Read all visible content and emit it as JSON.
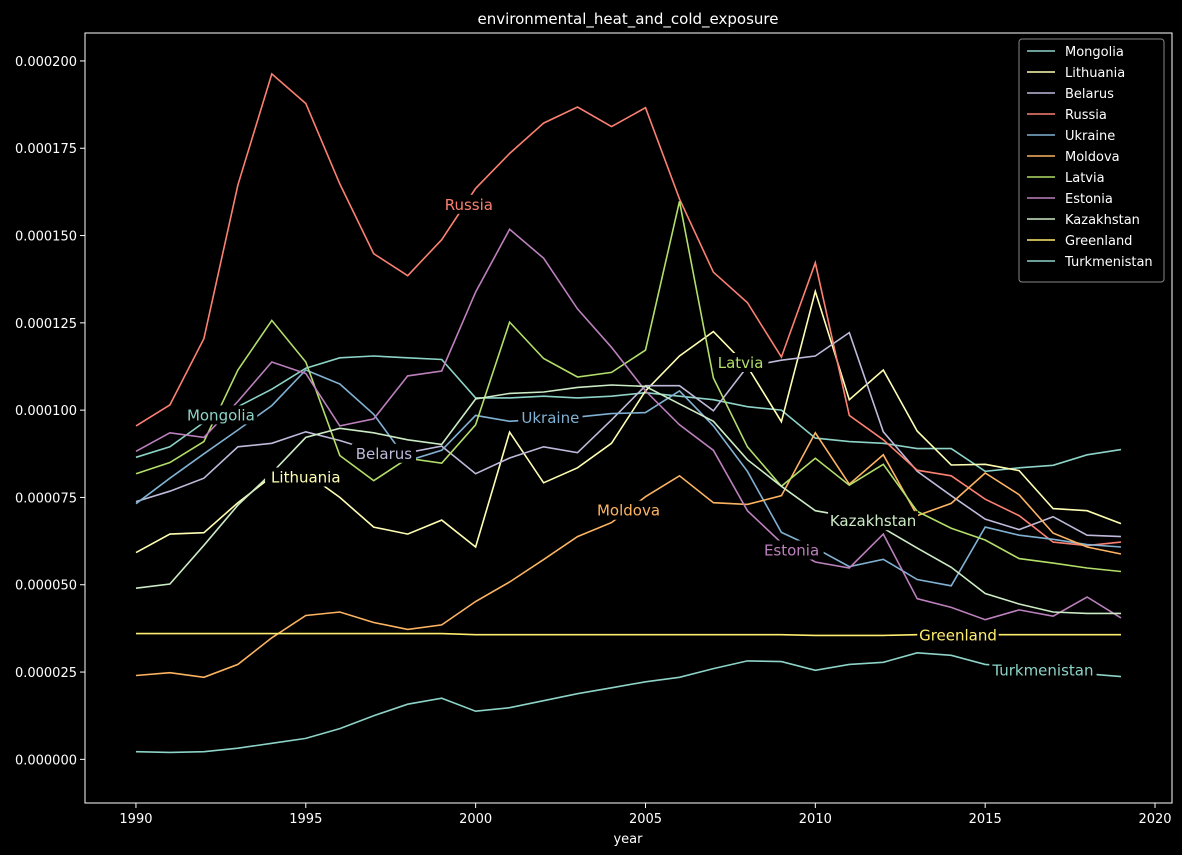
{
  "chart_data": {
    "type": "line",
    "title": "environmental_heat_and_cold_exposure",
    "xlabel": "year",
    "ylabel": "",
    "xlim": [
      1988.5,
      2020.5
    ],
    "ylim": [
      -1.25e-05,
      0.000208
    ],
    "x_ticks": [
      1990,
      1995,
      2000,
      2005,
      2010,
      2015,
      2020
    ],
    "x_tick_labels": [
      "1990",
      "1995",
      "2000",
      "2005",
      "2010",
      "2015",
      "2020"
    ],
    "y_ticks": [
      0,
      2.5e-05,
      5e-05,
      7.5e-05,
      0.0001,
      0.000125,
      0.00015,
      0.000175,
      0.0002
    ],
    "y_tick_labels": [
      "0.000000",
      "0.000025",
      "0.000050",
      "0.000075",
      "0.000100",
      "0.000125",
      "0.000150",
      "0.000175",
      "0.000200"
    ],
    "grid": false,
    "legend_position": "top-right",
    "x": [
      1990,
      1991,
      1992,
      1993,
      1994,
      1995,
      1996,
      1997,
      1998,
      1999,
      2000,
      2001,
      2002,
      2003,
      2004,
      2005,
      2006,
      2007,
      2008,
      2009,
      2010,
      2011,
      2012,
      2013,
      2014,
      2015,
      2016,
      2017,
      2018,
      2019
    ],
    "series": [
      {
        "name": "Mongolia",
        "color": "#8dd3c7",
        "label_x": 1992.5,
        "label_y": 9.85e-05,
        "values": [
          8.65e-05,
          8.95e-05,
          9.65e-05,
          0.000101,
          0.000106,
          0.000112,
          0.000115,
          0.0001155,
          0.000115,
          0.0001145,
          0.0001035,
          0.0001035,
          0.000104,
          0.0001035,
          0.000104,
          0.000105,
          0.000104,
          0.000103,
          0.000101,
          0.0001,
          9.2e-05,
          9.1e-05,
          9.05e-05,
          8.9e-05,
          8.9e-05,
          8.25e-05,
          8.35e-05,
          8.42e-05,
          8.72e-05,
          8.87e-05
        ]
      },
      {
        "name": "Lithuania",
        "color": "#ffffb3",
        "label_x": 1995.0,
        "label_y": 8.07e-05,
        "values": [
          5.92e-05,
          6.45e-05,
          6.49e-05,
          7.35e-05,
          8.1e-05,
          8.2e-05,
          7.5e-05,
          6.65e-05,
          6.45e-05,
          6.85e-05,
          6.08e-05,
          9.37e-05,
          7.92e-05,
          8.35e-05,
          9.05e-05,
          0.0001055,
          0.0001155,
          0.0001225,
          0.0001125,
          9.67e-05,
          0.000134,
          0.000103,
          0.0001115,
          9.4e-05,
          8.43e-05,
          8.45e-05,
          8.27e-05,
          7.18e-05,
          7.12e-05,
          6.75e-05
        ]
      },
      {
        "name": "Belarus",
        "color": "#bebada",
        "label_x": 1997.3,
        "label_y": 8.75e-05,
        "values": [
          7.38e-05,
          7.68e-05,
          8.05e-05,
          8.95e-05,
          9.05e-05,
          9.38e-05,
          9.13e-05,
          8.83e-05,
          8.78e-05,
          8.97e-05,
          8.18e-05,
          8.63e-05,
          8.95e-05,
          8.78e-05,
          9.72e-05,
          0.000107,
          0.000107,
          9.98e-05,
          0.0001125,
          0.0001143,
          0.0001155,
          0.0001222,
          9.38e-05,
          8.25e-05,
          7.55e-05,
          6.88e-05,
          6.58e-05,
          6.95e-05,
          6.42e-05,
          6.38e-05
        ]
      },
      {
        "name": "Russia",
        "color": "#fb8072",
        "label_x": 1999.8,
        "label_y": 0.0001588,
        "values": [
          9.55e-05,
          0.0001015,
          0.0001205,
          0.0001645,
          0.0001963,
          0.0001878,
          0.0001648,
          0.0001448,
          0.0001385,
          0.0001488,
          0.0001635,
          0.0001735,
          0.0001822,
          0.0001868,
          0.0001812,
          0.0001866,
          0.0001605,
          0.0001395,
          0.0001308,
          0.0001152,
          0.0001422,
          9.85e-05,
          9.15e-05,
          8.28e-05,
          8.12e-05,
          7.45e-05,
          6.98e-05,
          6.22e-05,
          6.12e-05,
          6.22e-05
        ]
      },
      {
        "name": "Ukraine",
        "color": "#80b1d3",
        "label_x": 2002.2,
        "label_y": 9.77e-05,
        "values": [
          7.32e-05,
          8.05e-05,
          8.75e-05,
          9.43e-05,
          0.0001013,
          0.0001115,
          0.0001075,
          9.88e-05,
          8.55e-05,
          8.85e-05,
          9.85e-05,
          9.68e-05,
          9.75e-05,
          9.8e-05,
          9.9e-05,
          9.93e-05,
          0.0001055,
          9.55e-05,
          8.25e-05,
          6.5e-05,
          6.05e-05,
          5.52e-05,
          5.73e-05,
          5.15e-05,
          4.97e-05,
          6.65e-05,
          6.42e-05,
          6.3e-05,
          6.15e-05,
          6.08e-05
        ]
      },
      {
        "name": "Moldova",
        "color": "#fdb462",
        "label_x": 2004.5,
        "label_y": 7.12e-05,
        "values": [
          2.4e-05,
          2.48e-05,
          2.35e-05,
          2.72e-05,
          3.48e-05,
          4.12e-05,
          4.22e-05,
          3.92e-05,
          3.72e-05,
          3.85e-05,
          4.52e-05,
          5.08e-05,
          5.72e-05,
          6.38e-05,
          6.78e-05,
          7.52e-05,
          8.12e-05,
          7.35e-05,
          7.3e-05,
          7.55e-05,
          9.35e-05,
          7.88e-05,
          8.72e-05,
          6.98e-05,
          7.33e-05,
          8.2e-05,
          7.58e-05,
          6.48e-05,
          6.08e-05,
          5.88e-05
        ]
      },
      {
        "name": "Latvia",
        "color": "#b3de69",
        "label_x": 2007.8,
        "label_y": 0.0001135,
        "values": [
          8.18e-05,
          8.5e-05,
          9.1e-05,
          0.0001115,
          0.0001257,
          0.0001138,
          8.7e-05,
          7.98e-05,
          8.62e-05,
          8.48e-05,
          9.58e-05,
          0.0001252,
          0.0001148,
          0.0001095,
          0.0001108,
          0.0001172,
          0.0001598,
          0.0001092,
          8.95e-05,
          7.82e-05,
          8.62e-05,
          7.85e-05,
          8.45e-05,
          7.1e-05,
          6.62e-05,
          6.28e-05,
          5.75e-05,
          5.62e-05,
          5.48e-05,
          5.38e-05
        ]
      },
      {
        "name": "Estonia",
        "color": "#bc80bd",
        "label_x": 2009.3,
        "label_y": 5.98e-05,
        "values": [
          8.82e-05,
          9.35e-05,
          9.22e-05,
          0.0001025,
          0.0001138,
          0.0001105,
          9.55e-05,
          9.75e-05,
          0.0001098,
          0.0001112,
          0.0001338,
          0.0001518,
          0.0001435,
          0.000129,
          0.000118,
          0.0001055,
          9.58e-05,
          8.85e-05,
          7.12e-05,
          6.2e-05,
          5.65e-05,
          5.48e-05,
          6.45e-05,
          4.6e-05,
          4.35e-05,
          4e-05,
          4.28e-05,
          4.1e-05,
          4.65e-05,
          4.05e-05
        ]
      },
      {
        "name": "Kazakhstan",
        "color": "#ccebc5",
        "label_x": 2011.7,
        "label_y": 6.82e-05,
        "values": [
          4.9e-05,
          5.02e-05,
          6.13e-05,
          7.28e-05,
          8.2e-05,
          9.22e-05,
          9.48e-05,
          9.35e-05,
          9.15e-05,
          9.02e-05,
          0.0001032,
          0.0001048,
          0.0001052,
          0.0001065,
          0.0001072,
          0.0001068,
          0.0001018,
          9.68e-05,
          8.58e-05,
          7.82e-05,
          7.12e-05,
          6.95e-05,
          6.62e-05,
          6.05e-05,
          5.5e-05,
          4.75e-05,
          4.45e-05,
          4.22e-05,
          4.18e-05,
          4.18e-05
        ]
      },
      {
        "name": "Greenland",
        "color": "#ffed6f",
        "label_x": 2014.2,
        "label_y": 3.55e-05,
        "values": [
          3.6e-05,
          3.6e-05,
          3.6e-05,
          3.6e-05,
          3.6e-05,
          3.6e-05,
          3.6e-05,
          3.6e-05,
          3.6e-05,
          3.6e-05,
          3.57e-05,
          3.57e-05,
          3.57e-05,
          3.57e-05,
          3.57e-05,
          3.57e-05,
          3.57e-05,
          3.57e-05,
          3.57e-05,
          3.57e-05,
          3.55e-05,
          3.55e-05,
          3.55e-05,
          3.57e-05,
          3.57e-05,
          3.57e-05,
          3.57e-05,
          3.57e-05,
          3.57e-05,
          3.57e-05
        ]
      },
      {
        "name": "Turkmenistan",
        "color": "#8dd3c7",
        "label_x": 2016.7,
        "label_y": 2.55e-05,
        "values": [
          2.2e-06,
          2e-06,
          2.2e-06,
          3.2e-06,
          4.6e-06,
          6e-06,
          8.8e-06,
          1.25e-05,
          1.58e-05,
          1.75e-05,
          1.38e-05,
          1.48e-05,
          1.68e-05,
          1.88e-05,
          2.05e-05,
          2.22e-05,
          2.35e-05,
          2.6e-05,
          2.82e-05,
          2.8e-05,
          2.55e-05,
          2.72e-05,
          2.78e-05,
          3.05e-05,
          2.98e-05,
          2.72e-05,
          2.65e-05,
          2.55e-05,
          2.45e-05,
          2.37e-05
        ]
      }
    ]
  }
}
